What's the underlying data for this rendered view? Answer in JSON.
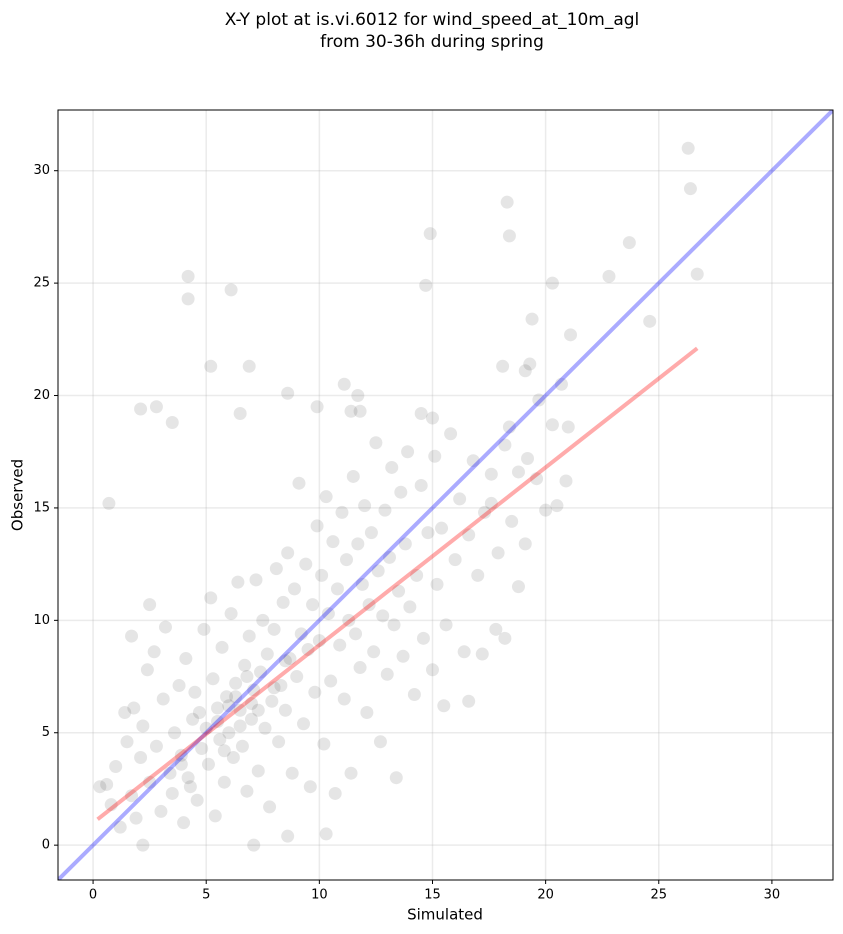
{
  "chart_data": {
    "type": "scatter",
    "title": [
      "X-Y plot at is.vi.6012 for wind_speed_at_10m_agl",
      "from 30-36h during spring"
    ],
    "xlabel": "Simulated",
    "ylabel": "Observed",
    "xlim": [
      -1.55,
      32.7
    ],
    "ylim": [
      -1.55,
      32.7
    ],
    "xticks": [
      0,
      5,
      10,
      15,
      20,
      25,
      30
    ],
    "yticks": [
      0,
      5,
      10,
      15,
      20,
      25,
      30
    ],
    "grid": true,
    "series": [
      {
        "type": "scatter",
        "color": "#000000",
        "opacity": 0.1,
        "x": [
          26.3,
          26.4,
          18.3,
          18.4,
          14.9,
          23.7,
          22.8,
          26.7,
          4.2,
          4.2,
          6.1,
          14.7,
          20.3,
          24.6,
          19.4,
          21.1,
          5.2,
          6.9,
          18.1,
          19.3,
          19.1,
          20.7,
          11.1,
          11.7,
          8.6,
          2.1,
          2.8,
          9.9,
          6.5,
          11.4,
          11.8,
          14.5,
          15.0,
          3.5,
          0.7,
          2.5,
          1.7,
          15.5,
          16.6,
          17.8,
          18.2,
          18.8,
          17.2,
          10.3,
          7.1,
          2.2,
          8.6,
          20.5,
          20.9,
          21.0,
          20.3,
          19.7,
          18.4,
          17.6,
          19.1,
          20.0,
          0.3,
          0.6,
          0.8,
          1.0,
          1.2,
          1.4,
          1.5,
          1.7,
          1.8,
          1.9,
          2.1,
          2.2,
          2.4,
          2.5,
          2.7,
          2.8,
          3.0,
          3.1,
          3.2,
          3.4,
          3.5,
          3.6,
          3.8,
          3.9,
          4.0,
          4.1,
          4.2,
          4.4,
          4.5,
          4.6,
          4.8,
          4.9,
          5.0,
          5.1,
          5.2,
          5.3,
          5.4,
          5.5,
          5.6,
          5.7,
          5.8,
          5.9,
          6.0,
          6.1,
          6.2,
          6.3,
          6.4,
          6.5,
          6.6,
          6.7,
          6.8,
          6.9,
          7.0,
          7.1,
          7.2,
          7.3,
          7.4,
          7.5,
          7.6,
          7.7,
          7.8,
          7.9,
          8.0,
          8.1,
          8.2,
          8.3,
          8.4,
          8.5,
          8.6,
          8.7,
          8.8,
          8.9,
          9.0,
          9.1,
          9.2,
          9.3,
          9.4,
          9.5,
          9.6,
          9.7,
          9.8,
          9.9,
          10.0,
          10.1,
          10.2,
          10.3,
          10.4,
          10.5,
          10.6,
          10.7,
          10.8,
          10.9,
          11.0,
          11.1,
          11.2,
          11.3,
          11.4,
          11.5,
          11.6,
          11.7,
          11.8,
          11.9,
          12.0,
          12.1,
          12.2,
          12.3,
          12.4,
          12.5,
          12.6,
          12.7,
          12.8,
          12.9,
          13.0,
          13.1,
          13.2,
          13.3,
          13.4,
          13.5,
          13.6,
          13.7,
          13.8,
          13.9,
          14.0,
          14.2,
          14.3,
          14.5,
          14.6,
          14.8,
          15.0,
          15.1,
          15.2,
          15.4,
          15.6,
          15.8,
          16.0,
          16.2,
          16.4,
          16.6,
          16.8,
          17.0,
          17.3,
          17.6,
          17.9,
          18.2,
          18.5,
          18.8,
          19.2,
          19.6,
          5.5,
          6.0,
          6.5,
          7.0,
          5.8,
          4.7,
          6.8,
          7.3,
          8.0,
          8.5,
          3.9,
          4.3,
          6.3
        ],
        "values": [
          31.0,
          29.2,
          28.6,
          27.1,
          27.2,
          26.8,
          25.3,
          25.4,
          25.3,
          24.3,
          24.7,
          24.9,
          25.0,
          23.3,
          23.4,
          22.7,
          21.3,
          21.3,
          21.3,
          21.4,
          21.1,
          20.5,
          20.5,
          20.0,
          20.1,
          19.4,
          19.5,
          19.5,
          19.2,
          19.3,
          19.3,
          19.2,
          19.0,
          18.8,
          15.2,
          10.7,
          9.3,
          6.2,
          6.4,
          9.6,
          9.2,
          11.5,
          8.5,
          0.5,
          0.0,
          0.0,
          0.4,
          15.1,
          16.2,
          18.6,
          18.7,
          19.8,
          18.6,
          15.2,
          13.4,
          14.9,
          2.6,
          2.7,
          1.8,
          3.5,
          0.8,
          5.9,
          4.6,
          2.2,
          6.1,
          1.2,
          3.9,
          5.3,
          7.8,
          2.8,
          8.6,
          4.4,
          1.5,
          6.5,
          9.7,
          3.2,
          2.3,
          5.0,
          7.1,
          4.0,
          1.0,
          8.3,
          3.0,
          5.6,
          6.8,
          2.0,
          4.3,
          9.6,
          5.2,
          3.6,
          11.0,
          7.4,
          1.3,
          6.1,
          4.7,
          8.8,
          2.8,
          6.6,
          5.0,
          10.3,
          3.9,
          7.2,
          11.7,
          6.0,
          4.4,
          8.0,
          2.4,
          9.3,
          5.6,
          6.9,
          11.8,
          3.3,
          7.7,
          10.0,
          5.2,
          8.5,
          1.7,
          6.4,
          9.6,
          12.3,
          4.6,
          7.1,
          10.8,
          6.0,
          13.0,
          8.3,
          3.2,
          11.4,
          7.5,
          16.1,
          9.4,
          5.4,
          12.5,
          8.7,
          2.6,
          10.7,
          6.8,
          14.2,
          9.1,
          12.0,
          4.5,
          15.5,
          10.3,
          7.3,
          13.5,
          2.3,
          11.4,
          8.9,
          14.8,
          6.5,
          12.7,
          10.0,
          3.2,
          16.4,
          9.4,
          13.4,
          7.9,
          11.6,
          15.1,
          5.9,
          10.7,
          13.9,
          8.6,
          17.9,
          12.2,
          4.6,
          10.2,
          14.9,
          7.6,
          12.8,
          16.8,
          9.8,
          3.0,
          11.3,
          15.7,
          8.4,
          13.4,
          17.5,
          10.6,
          6.7,
          12.0,
          16.0,
          9.2,
          13.9,
          7.8,
          17.3,
          11.6,
          14.1,
          9.8,
          18.3,
          12.7,
          15.4,
          8.6,
          13.8,
          17.1,
          12.0,
          14.8,
          16.5,
          13.0,
          17.8,
          14.4,
          16.6,
          17.2,
          16.3,
          5.5,
          6.2,
          5.3,
          6.3,
          4.2,
          5.9,
          7.5,
          6.0,
          7.0,
          8.2,
          3.6,
          2.6,
          6.6
        ]
      },
      {
        "type": "line",
        "color": "#0000ff",
        "opacity": 0.33,
        "x": [
          -1.55,
          32.7
        ],
        "values": [
          -1.55,
          32.7
        ]
      },
      {
        "type": "line",
        "color": "#ff0000",
        "opacity": 0.33,
        "x": [
          0.2,
          26.7
        ],
        "values": [
          1.15,
          22.1
        ]
      }
    ]
  }
}
